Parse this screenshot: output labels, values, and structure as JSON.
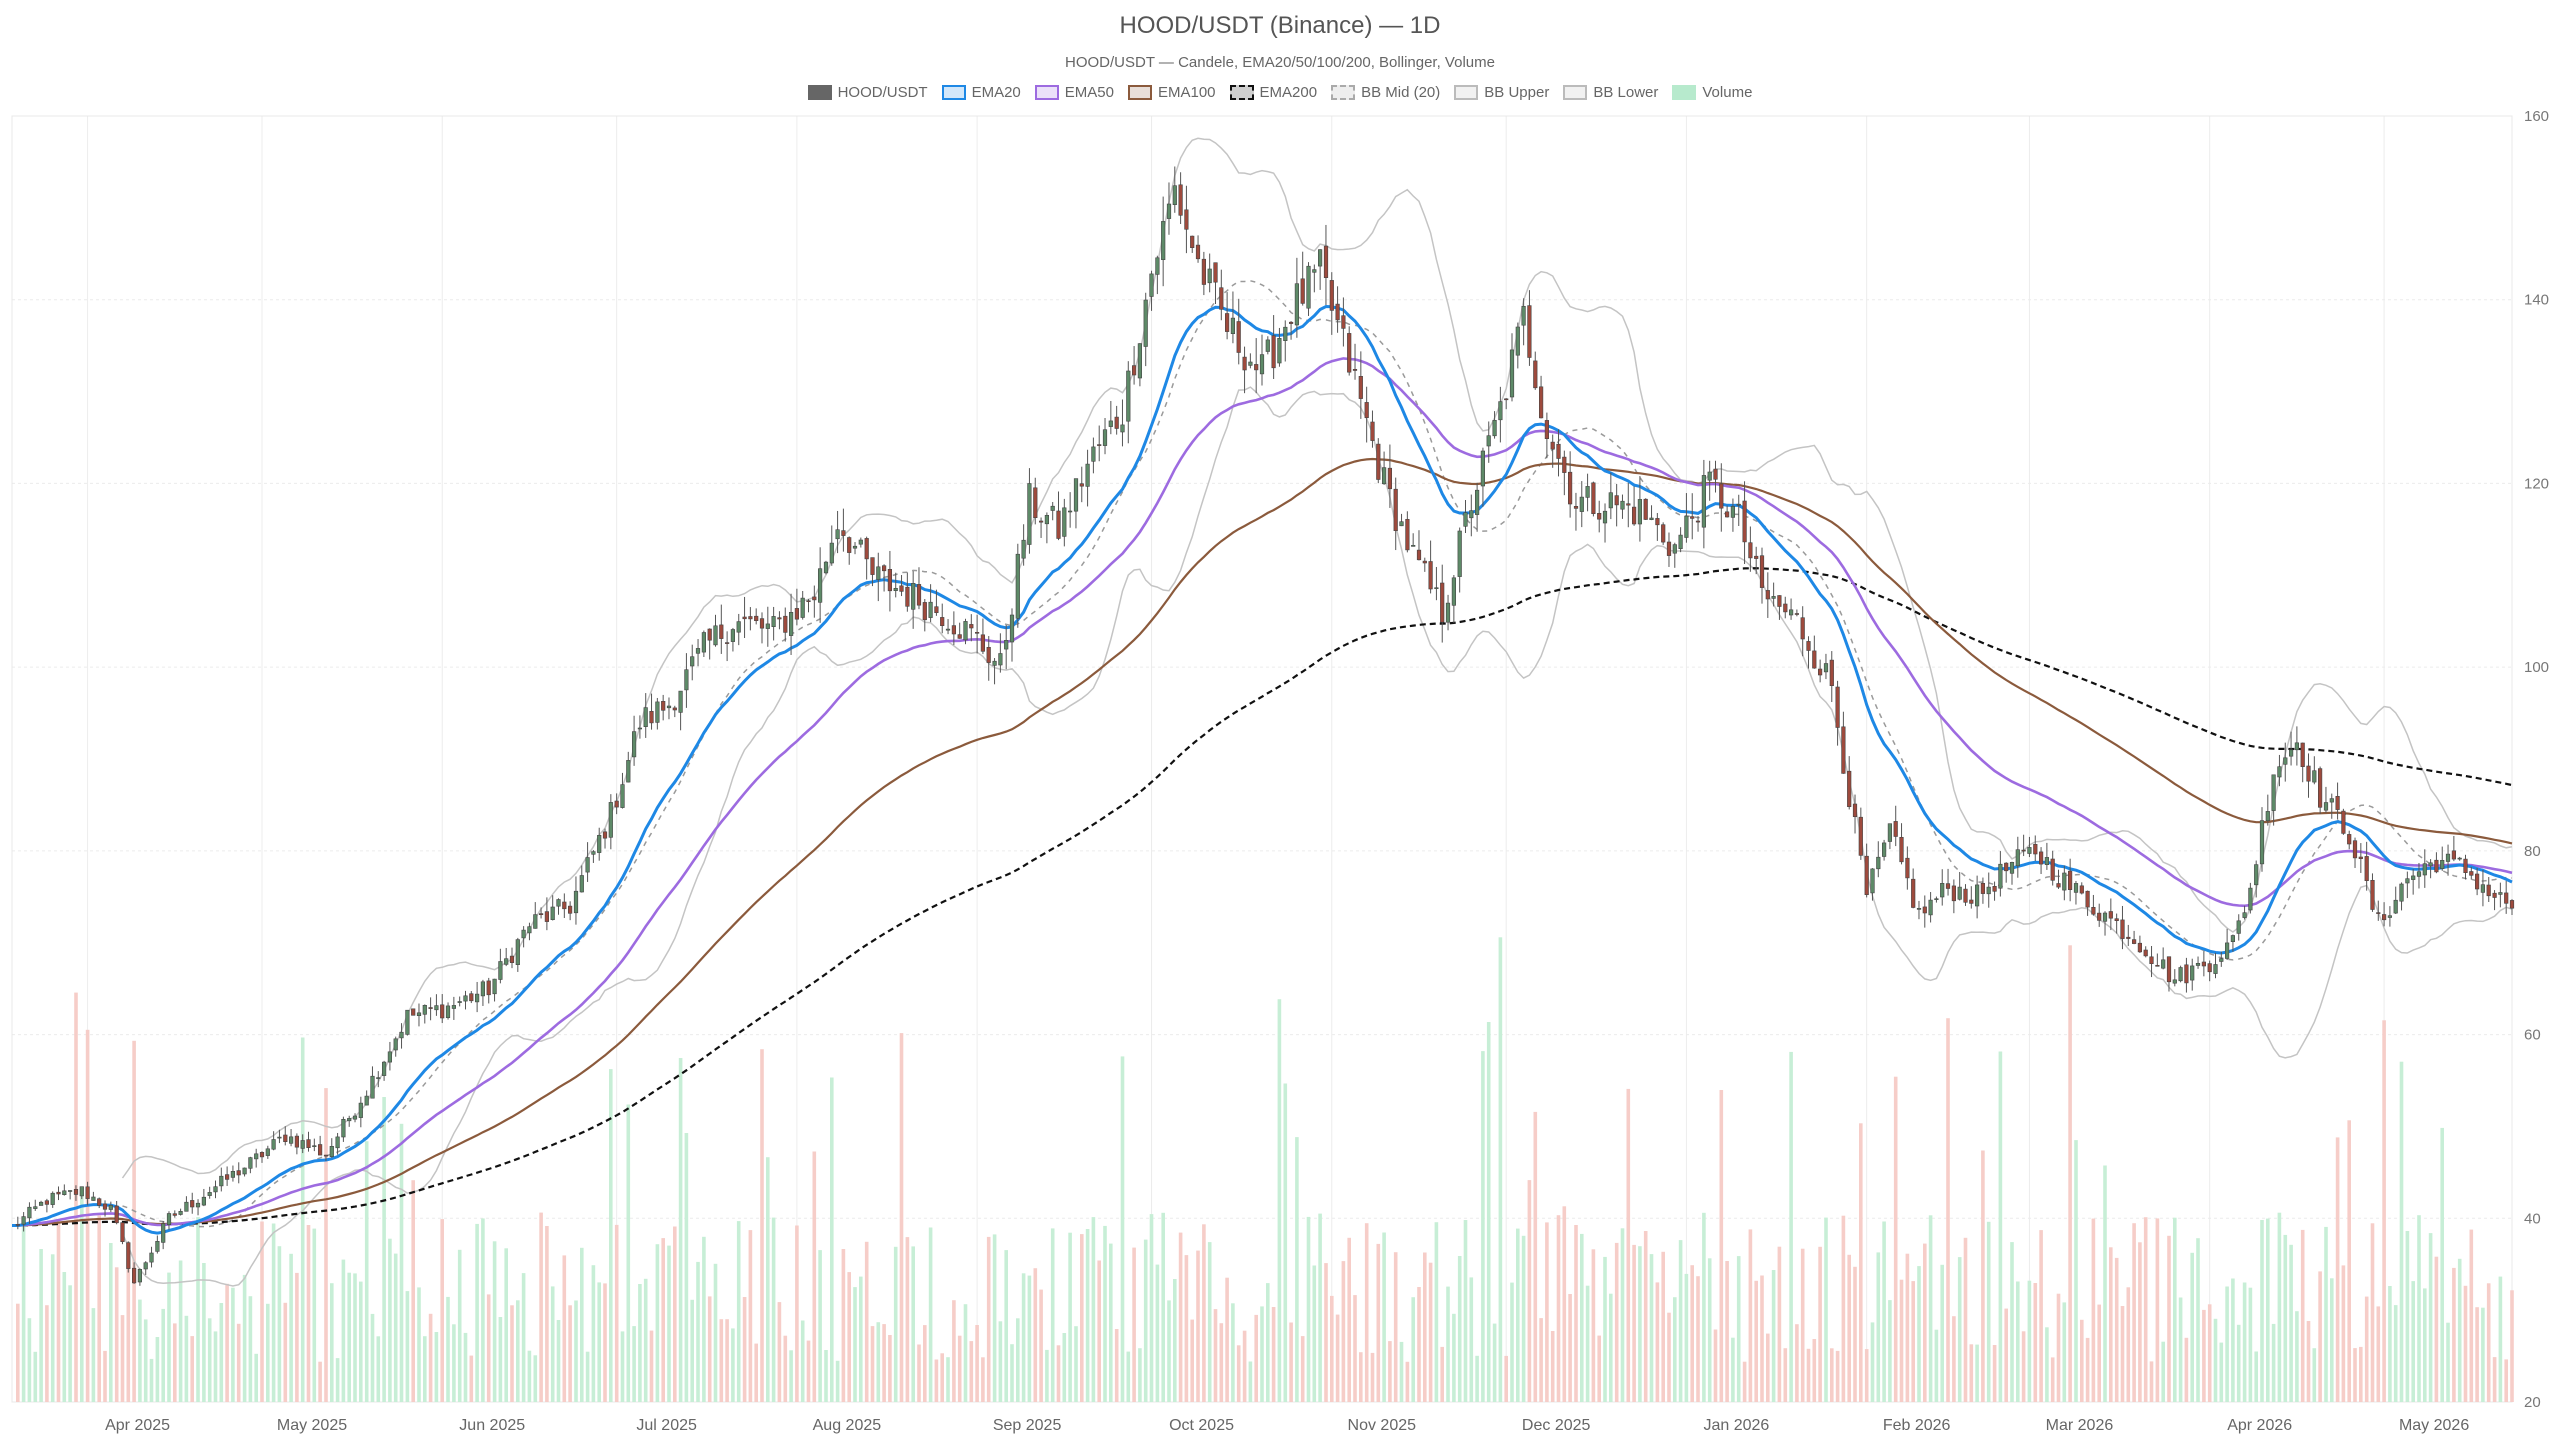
{
  "chart_data": {
    "type": "candlestick",
    "title": "HOOD/USDT (Binance) — 1D",
    "subtitle": "HOOD/USDT — Candele, EMA20/50/100/200, Bollinger, Volume",
    "ylim": [
      20,
      160
    ],
    "y_ticks": [
      20,
      40,
      60,
      80,
      100,
      120,
      140,
      160
    ],
    "x_range": [
      "2025-03-19",
      "2026-05-23"
    ],
    "x_ticks": [
      {
        "date": "2025-04-01",
        "label": "Apr 2025"
      },
      {
        "date": "2025-05-01",
        "label": "May 2025"
      },
      {
        "date": "2025-06-01",
        "label": "Jun 2025"
      },
      {
        "date": "2025-07-01",
        "label": "Jul 2025"
      },
      {
        "date": "2025-08-01",
        "label": "Aug 2025"
      },
      {
        "date": "2025-09-01",
        "label": "Sep 2025"
      },
      {
        "date": "2025-10-01",
        "label": "Oct 2025"
      },
      {
        "date": "2025-11-01",
        "label": "Nov 2025"
      },
      {
        "date": "2025-12-01",
        "label": "Dec 2025"
      },
      {
        "date": "2026-01-01",
        "label": "Jan 2026"
      },
      {
        "date": "2026-02-01",
        "label": "Feb 2026"
      },
      {
        "date": "2026-03-01",
        "label": "Mar 2026"
      },
      {
        "date": "2026-04-01",
        "label": "Apr 2026"
      },
      {
        "date": "2026-05-01",
        "label": "May 2026"
      }
    ],
    "grid": true,
    "legend_position": "top-center",
    "legend": [
      {
        "name": "HOOD/USDT",
        "color": "#666666",
        "style": "solid"
      },
      {
        "name": "EMA20",
        "color": "#1e88e5",
        "style": "solid"
      },
      {
        "name": "EMA50",
        "color": "#9d6be0",
        "style": "solid"
      },
      {
        "name": "EMA100",
        "color": "#8b5a3c",
        "style": "solid"
      },
      {
        "name": "EMA200",
        "color": "#111111",
        "style": "dashed"
      },
      {
        "name": "BB Mid (20)",
        "color": "#aaaaaa",
        "style": "dashed"
      },
      {
        "name": "BB Upper",
        "color": "#bbbbbb",
        "style": "solid"
      },
      {
        "name": "BB Lower",
        "color": "#bbbbbb",
        "style": "solid"
      },
      {
        "name": "Volume",
        "color": "#b7eacd",
        "style": "solid"
      }
    ],
    "colors": {
      "up": "#5e8a68",
      "down": "#9e4a3d",
      "vol_up": "#c7eed6",
      "vol_down": "#f6cdc8"
    },
    "close_anchors": [
      [
        "2025-03-19",
        39
      ],
      [
        "2025-03-25",
        42
      ],
      [
        "2025-03-31",
        43
      ],
      [
        "2025-04-05",
        41
      ],
      [
        "2025-04-09",
        33
      ],
      [
        "2025-04-15",
        40
      ],
      [
        "2025-04-22",
        43
      ],
      [
        "2025-04-29",
        46
      ],
      [
        "2025-05-05",
        49
      ],
      [
        "2025-05-12",
        47
      ],
      [
        "2025-05-19",
        54
      ],
      [
        "2025-05-26",
        62
      ],
      [
        "2025-06-02",
        63
      ],
      [
        "2025-06-09",
        65
      ],
      [
        "2025-06-16",
        72
      ],
      [
        "2025-06-23",
        74
      ],
      [
        "2025-06-30",
        84
      ],
      [
        "2025-07-05",
        94
      ],
      [
        "2025-07-10",
        96
      ],
      [
        "2025-07-16",
        102
      ],
      [
        "2025-07-21",
        105
      ],
      [
        "2025-07-28",
        104
      ],
      [
        "2025-08-04",
        108
      ],
      [
        "2025-08-08",
        116
      ],
      [
        "2025-08-14",
        110
      ],
      [
        "2025-08-20",
        108
      ],
      [
        "2025-08-26",
        106
      ],
      [
        "2025-09-01",
        103
      ],
      [
        "2025-09-05",
        100
      ],
      [
        "2025-09-10",
        118
      ],
      [
        "2025-09-15",
        115
      ],
      [
        "2025-09-20",
        122
      ],
      [
        "2025-09-26",
        128
      ],
      [
        "2025-10-01",
        143
      ],
      [
        "2025-10-05",
        152
      ],
      [
        "2025-10-09",
        144
      ],
      [
        "2025-10-14",
        137
      ],
      [
        "2025-10-20",
        132
      ],
      [
        "2025-10-25",
        139
      ],
      [
        "2025-10-30",
        143
      ],
      [
        "2025-11-05",
        131
      ],
      [
        "2025-11-10",
        120
      ],
      [
        "2025-11-15",
        112
      ],
      [
        "2025-11-20",
        106
      ],
      [
        "2025-11-25",
        118
      ],
      [
        "2025-11-30",
        128
      ],
      [
        "2025-12-04",
        138
      ],
      [
        "2025-12-08",
        126
      ],
      [
        "2025-12-13",
        118
      ],
      [
        "2025-12-18",
        118
      ],
      [
        "2025-12-24",
        117
      ],
      [
        "2025-12-30",
        113
      ],
      [
        "2026-01-05",
        120
      ],
      [
        "2026-01-10",
        116
      ],
      [
        "2026-01-14",
        108
      ],
      [
        "2026-01-20",
        105
      ],
      [
        "2026-01-26",
        98
      ],
      [
        "2026-01-29",
        86
      ],
      [
        "2026-02-01",
        75
      ],
      [
        "2026-02-05",
        82
      ],
      [
        "2026-02-10",
        73
      ],
      [
        "2026-02-15",
        76
      ],
      [
        "2026-02-20",
        75
      ],
      [
        "2026-02-25",
        78
      ],
      [
        "2026-03-02",
        80
      ],
      [
        "2026-03-08",
        76
      ],
      [
        "2026-03-14",
        73
      ],
      [
        "2026-03-20",
        70
      ],
      [
        "2026-03-26",
        66
      ],
      [
        "2026-04-01",
        68
      ],
      [
        "2026-04-05",
        70
      ],
      [
        "2026-04-08",
        76
      ],
      [
        "2026-04-12",
        89
      ],
      [
        "2026-04-16",
        92
      ],
      [
        "2026-04-20",
        86
      ],
      [
        "2026-04-25",
        82
      ],
      [
        "2026-04-30",
        72
      ],
      [
        "2026-05-05",
        77
      ],
      [
        "2026-05-10",
        79
      ],
      [
        "2026-05-15",
        78
      ],
      [
        "2026-05-20",
        75
      ],
      [
        "2026-05-23",
        74
      ]
    ]
  }
}
